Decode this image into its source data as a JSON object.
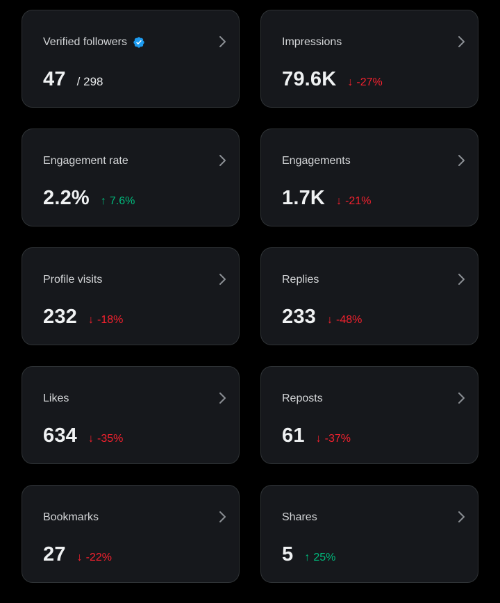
{
  "colors": {
    "background": "#000000",
    "card": "#16181c",
    "border": "#2f3336",
    "negative": "#f4212e",
    "positive": "#00ba7c",
    "verified": "#1d9bf0"
  },
  "cards": [
    {
      "title": "Verified followers",
      "value": "47",
      "total": "/ 298",
      "verified": true,
      "icon": "verified-badge-icon"
    },
    {
      "title": "Impressions",
      "value": "79.6K",
      "change": "-27%",
      "direction": "down",
      "arrow": "↓"
    },
    {
      "title": "Engagement rate",
      "value": "2.2%",
      "change": "7.6%",
      "direction": "up",
      "arrow": "↑"
    },
    {
      "title": "Engagements",
      "value": "1.7K",
      "change": "-21%",
      "direction": "down",
      "arrow": "↓"
    },
    {
      "title": "Profile visits",
      "value": "232",
      "change": "-18%",
      "direction": "down",
      "arrow": "↓"
    },
    {
      "title": "Replies",
      "value": "233",
      "change": "-48%",
      "direction": "down",
      "arrow": "↓"
    },
    {
      "title": "Likes",
      "value": "634",
      "change": "-35%",
      "direction": "down",
      "arrow": "↓"
    },
    {
      "title": "Reposts",
      "value": "61",
      "change": "-37%",
      "direction": "down",
      "arrow": "↓"
    },
    {
      "title": "Bookmarks",
      "value": "27",
      "change": "-22%",
      "direction": "down",
      "arrow": "↓"
    },
    {
      "title": "Shares",
      "value": "5",
      "change": "25%",
      "direction": "up",
      "arrow": "↑"
    }
  ]
}
